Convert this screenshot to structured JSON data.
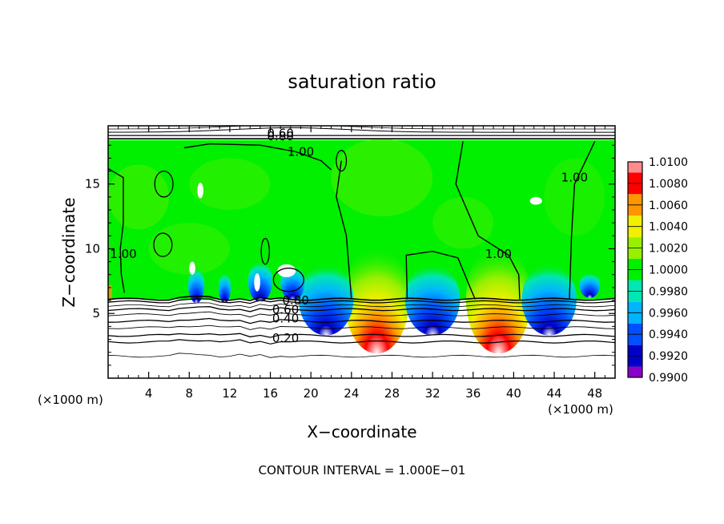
{
  "chart_data": {
    "type": "heatmap",
    "title": "saturation ratio",
    "xlabel": "X−coordinate",
    "ylabel": "Z−coordinate",
    "x_unit_left": "(×1000 m)",
    "x_unit_right": "(×1000 m)",
    "xlim": [
      0,
      50
    ],
    "ylim": [
      0,
      19.5
    ],
    "x_ticks": [
      4,
      8,
      12,
      16,
      20,
      24,
      28,
      32,
      36,
      40,
      44,
      48
    ],
    "x_tick_labels": [
      "4",
      "8",
      "12",
      "16",
      "20",
      "24",
      "28",
      "32",
      "36",
      "40",
      "44",
      "48"
    ],
    "y_ticks": [
      5,
      10,
      15
    ],
    "y_tick_labels": [
      "5",
      "10",
      "15"
    ],
    "colorbar": {
      "levels": [
        0.99,
        0.992,
        0.994,
        0.996,
        0.998,
        1.0,
        1.002,
        1.004,
        1.006,
        1.008,
        1.01
      ],
      "labels": [
        "0.9900",
        "0.9920",
        "0.9940",
        "0.9960",
        "0.9980",
        "1.0000",
        "1.0020",
        "1.0040",
        "1.0060",
        "1.0080",
        "1.0100"
      ],
      "colors": [
        "#8a00c8",
        "#0000c8",
        "#0050ff",
        "#00b4ff",
        "#00e6b4",
        "#00f000",
        "#96f000",
        "#f0f000",
        "#ff9600",
        "#ff0000",
        "#ff8c8c"
      ]
    },
    "contour_labels": [
      {
        "text": "0.60",
        "x": 17.0,
        "y": 18.9
      },
      {
        "text": "0.80",
        "x": 17.0,
        "y": 18.7
      },
      {
        "text": "1.00",
        "x": 19.0,
        "y": 17.5
      },
      {
        "text": "1.00",
        "x": 46.0,
        "y": 15.5
      },
      {
        "text": "1.00",
        "x": 1.5,
        "y": 9.6
      },
      {
        "text": "1.00",
        "x": 38.5,
        "y": 9.6
      },
      {
        "text": "0.80",
        "x": 18.5,
        "y": 6.0
      },
      {
        "text": "0.60",
        "x": 17.5,
        "y": 5.3
      },
      {
        "text": "0.40",
        "x": 17.5,
        "y": 4.6
      },
      {
        "text": "0.20",
        "x": 17.5,
        "y": 3.1
      }
    ],
    "cloud_cells": [
      {
        "center_x": 26.5,
        "value_peak": 1.008
      },
      {
        "center_x": 38.5,
        "value_peak": 1.008
      },
      {
        "center_x": 21.5,
        "value_min": 0.992
      },
      {
        "center_x": 32.0,
        "value_min": 0.991
      },
      {
        "center_x": 43.5,
        "value_min": 0.993
      }
    ],
    "footer": "CONTOUR INTERVAL = 1.000E−01"
  },
  "colors": {
    "background_field": "#00f000",
    "missing": "#ffffff",
    "contour": "#000000"
  }
}
